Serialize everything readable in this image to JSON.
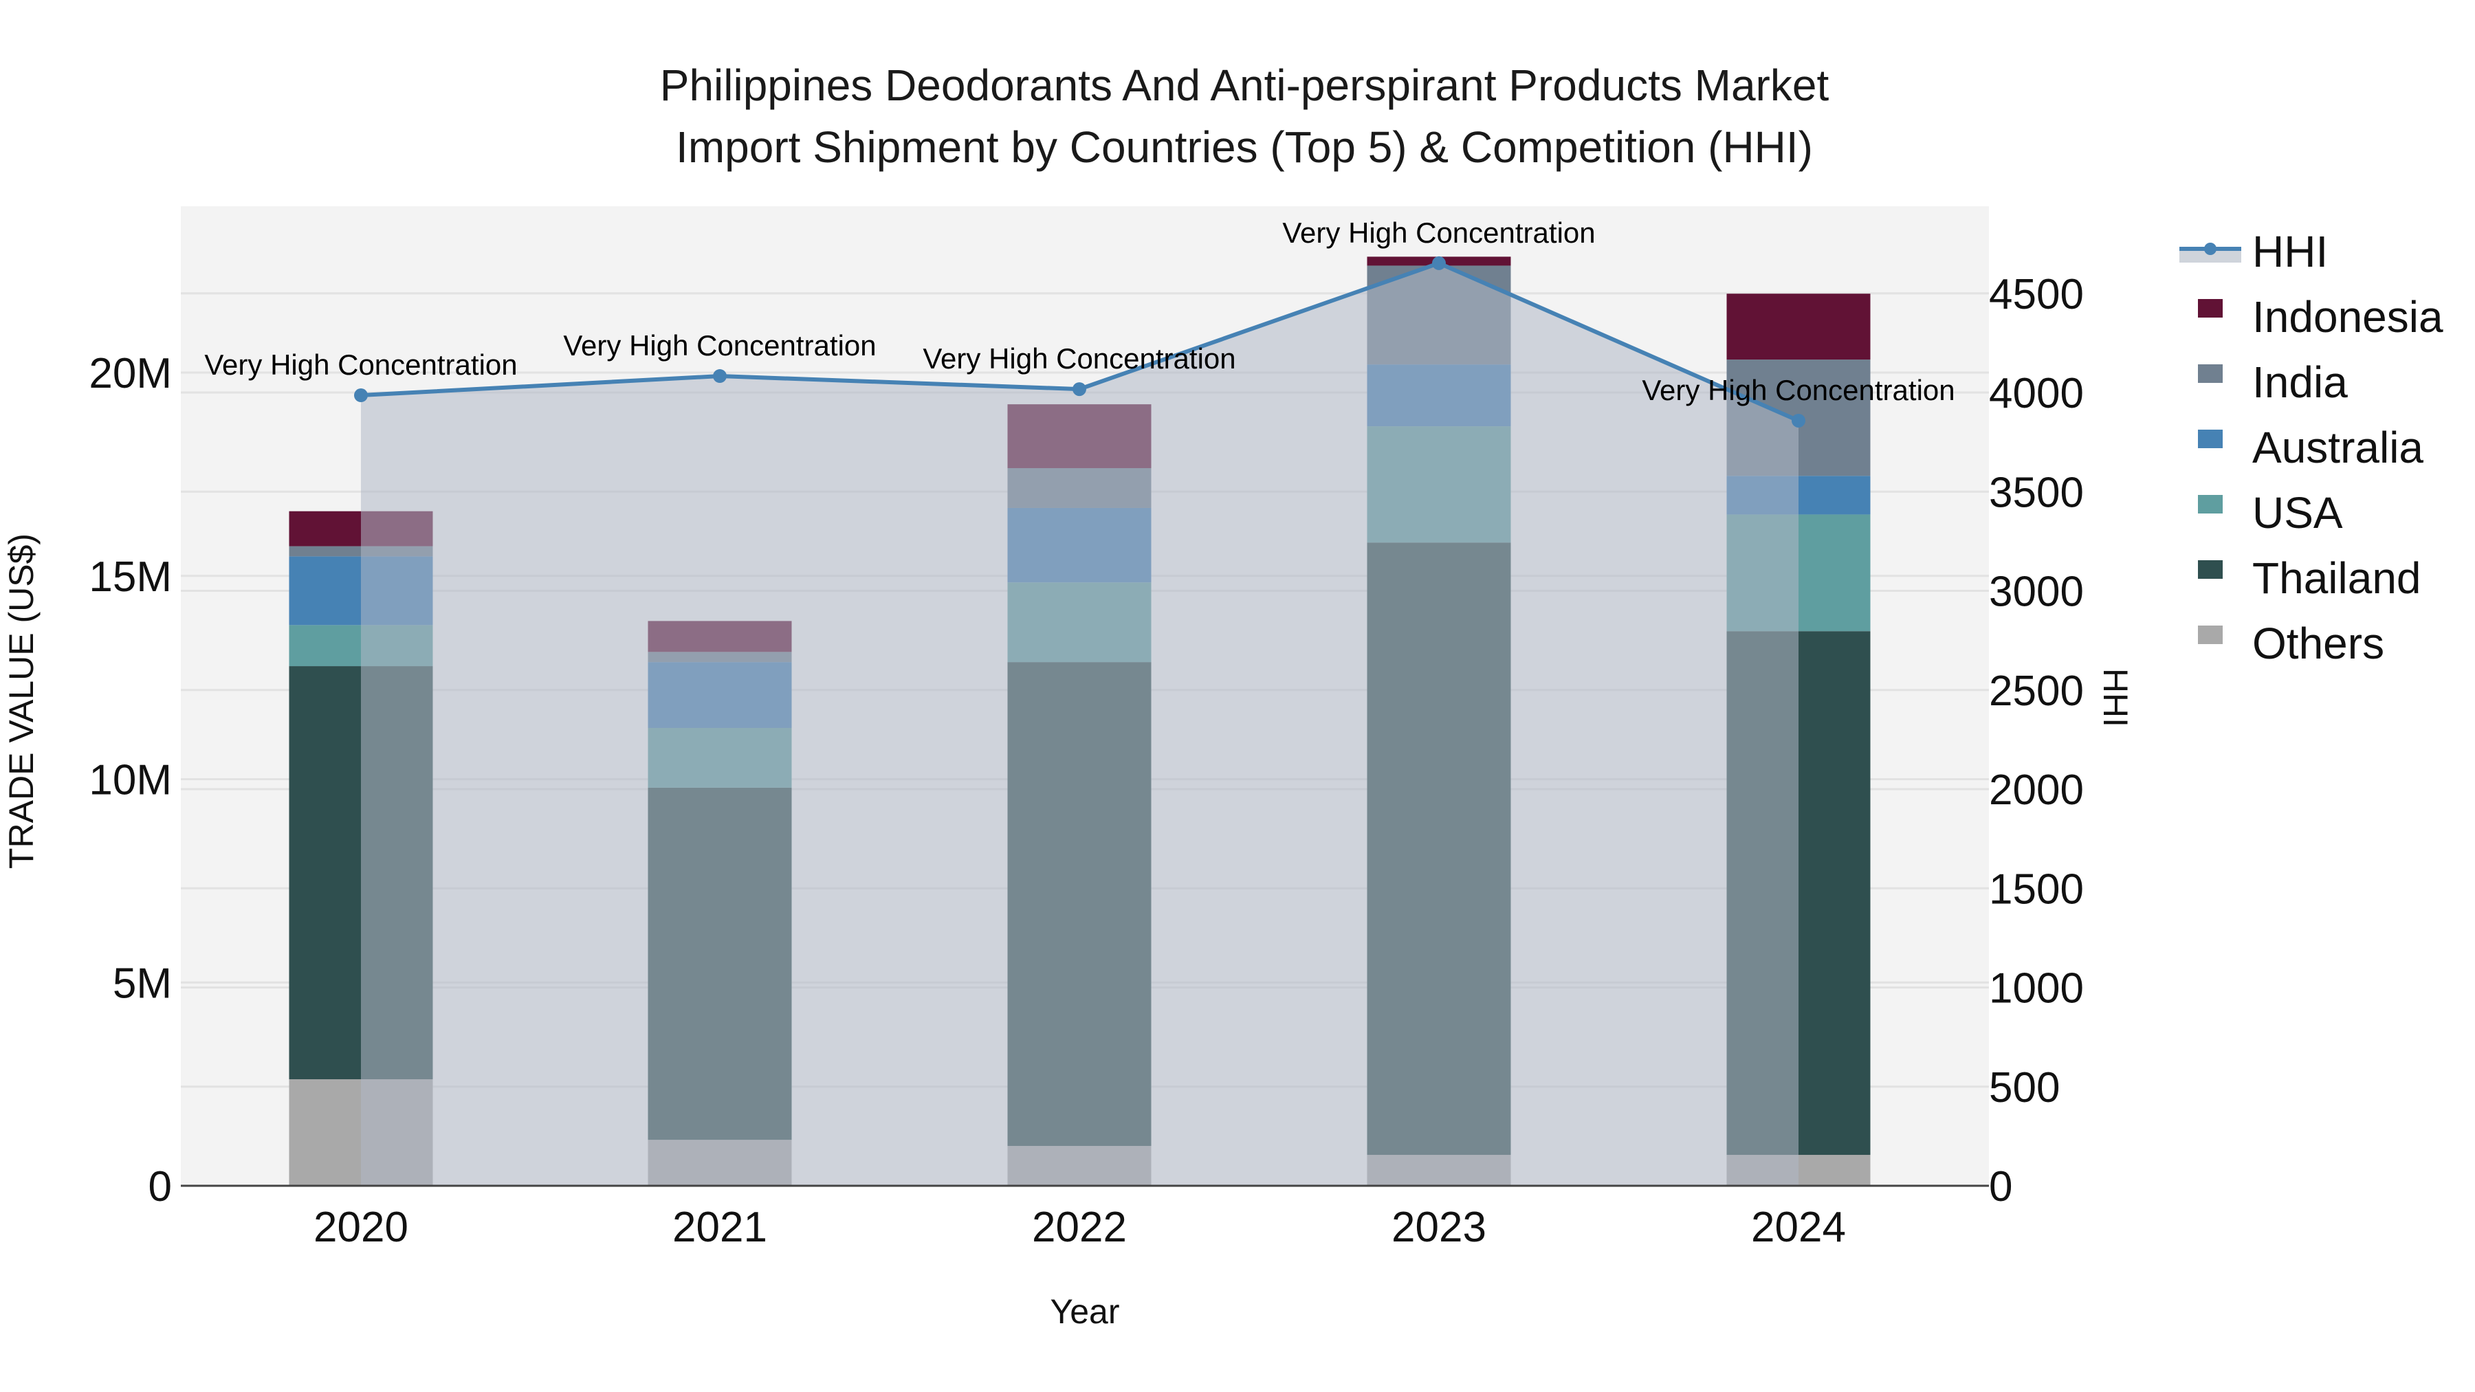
{
  "chart_data": {
    "type": "bar",
    "stacked": true,
    "title": "Philippines Deodorants And Anti-perspirant Products Market Import Shipment by Countries (Top 5) & Competition (HHI)",
    "title_lines": [
      "Philippines Deodorants And Anti-perspirant Products Market",
      "Import Shipment by Countries (Top 5) & Competition (HHI)"
    ],
    "xlabel": "Year",
    "ylabel": "TRADE VALUE (US$)",
    "y2label": "HHI",
    "categories": [
      "2020",
      "2021",
      "2022",
      "2023",
      "2024"
    ],
    "ylim": [
      0,
      24000000
    ],
    "y_ticks": [
      {
        "value": 0,
        "label": "0"
      },
      {
        "value": 5000000,
        "label": "5M"
      },
      {
        "value": 10000000,
        "label": "10M"
      },
      {
        "value": 15000000,
        "label": "15M"
      },
      {
        "value": 20000000,
        "label": "20M"
      }
    ],
    "y2lim": [
      0,
      4930
    ],
    "y2_ticks": [
      {
        "value": 0,
        "label": "0"
      },
      {
        "value": 500,
        "label": "500"
      },
      {
        "value": 1000,
        "label": "1000"
      },
      {
        "value": 1500,
        "label": "1500"
      },
      {
        "value": 2000,
        "label": "2000"
      },
      {
        "value": 2500,
        "label": "2500"
      },
      {
        "value": 3000,
        "label": "3000"
      },
      {
        "value": 3500,
        "label": "3500"
      },
      {
        "value": 4000,
        "label": "4000"
      },
      {
        "value": 4500,
        "label": "4500"
      }
    ],
    "grid": true,
    "legend_position": "right",
    "series": [
      {
        "name": "Others",
        "color": "#a9a9a9",
        "values": [
          2620000,
          1130000,
          980000,
          760000,
          760000
        ]
      },
      {
        "name": "Thailand",
        "color": "#2f4f4f",
        "values": [
          10160000,
          8660000,
          11900000,
          15060000,
          12880000
        ]
      },
      {
        "name": "USA",
        "color": "#5f9ea0",
        "values": [
          1010000,
          1470000,
          1960000,
          2860000,
          2870000
        ]
      },
      {
        "name": "Australia",
        "color": "#4682b4",
        "values": [
          1690000,
          1620000,
          1830000,
          1520000,
          950000
        ]
      },
      {
        "name": "India",
        "color": "#708090",
        "values": [
          250000,
          250000,
          980000,
          2430000,
          2860000
        ]
      },
      {
        "name": "Indonesia",
        "color": "#611235",
        "values": [
          860000,
          760000,
          1570000,
          220000,
          1620000
        ]
      }
    ],
    "line_series": {
      "name": "HHI",
      "axis": "y2",
      "color": "#4682b4",
      "fill_color": "#b0b8c6",
      "values": [
        3986,
        4083,
        4017,
        4652,
        3858
      ],
      "annotations": [
        "Very High Concentration",
        "Very High Concentration",
        "Very High Concentration",
        "Very High Concentration",
        "Very High Concentration"
      ]
    }
  },
  "legend": {
    "items": [
      {
        "label": "HHI",
        "type": "line",
        "color": "#4682b4"
      },
      {
        "label": "Indonesia",
        "type": "box",
        "color": "#611235"
      },
      {
        "label": "India",
        "type": "box",
        "color": "#708090"
      },
      {
        "label": "Australia",
        "type": "box",
        "color": "#4682b4"
      },
      {
        "label": "USA",
        "type": "box",
        "color": "#5f9ea0"
      },
      {
        "label": "Thailand",
        "type": "box",
        "color": "#2f4f4f"
      },
      {
        "label": "Others",
        "type": "box",
        "color": "#a9a9a9"
      }
    ]
  },
  "colors": {
    "plot_background": "#f3f3f3",
    "grid": "#e2e2e2",
    "axis_line": "#444444"
  }
}
